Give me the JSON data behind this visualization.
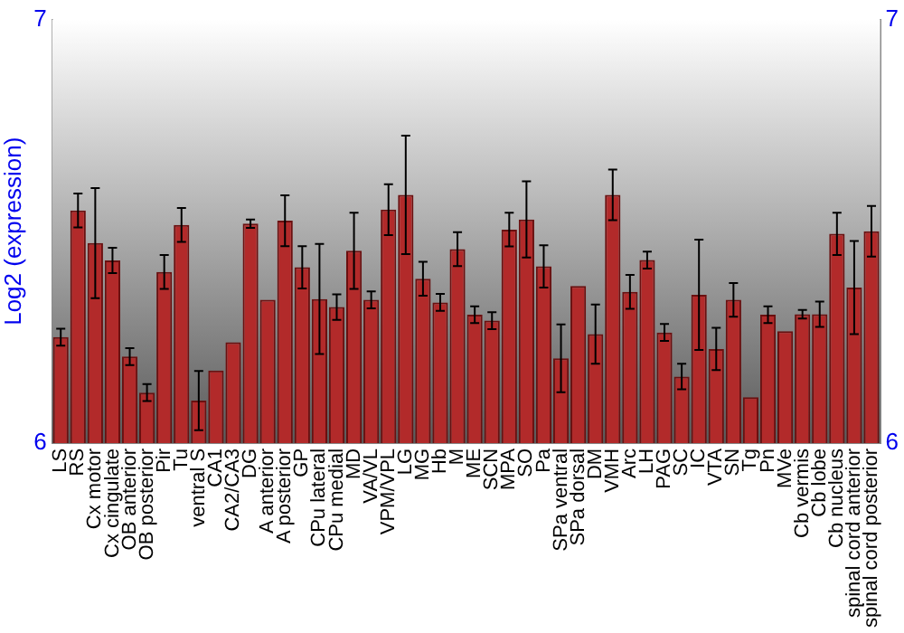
{
  "chart_data": {
    "type": "bar",
    "ylabel": "Log2 (expression)",
    "categories": [
      "LS",
      "RS",
      "Cx motor",
      "Cx cingulate",
      "OB anterior",
      "OB posterior",
      "Pir",
      "Tu",
      "ventral S",
      "CA1",
      "CA2/CA3",
      "DG",
      "A anterior",
      "A posterior",
      "GP",
      "CPu lateral",
      "CPu medial",
      "MD",
      "VA/VL",
      "VPM/VPL",
      "LG",
      "MG",
      "Hb",
      "M",
      "ME",
      "SCN",
      "MPA",
      "SO",
      "Pa",
      "SPa ventral",
      "SPa dorsal",
      "DM",
      "VMH",
      "Arc",
      "LH",
      "PAG",
      "SC",
      "IC",
      "VTA",
      "SN",
      "Tg",
      "Pn",
      "MVe",
      "Cb vermis",
      "Cb lobe",
      "Cb nucleus",
      "spinal cord anterior",
      "spinal cord posterior"
    ],
    "values": [
      6.25,
      6.549,
      6.472,
      6.431,
      6.204,
      6.119,
      6.404,
      6.515,
      6.1,
      6.171,
      6.238,
      6.518,
      6.338,
      6.525,
      6.415,
      6.34,
      6.321,
      6.454,
      6.338,
      6.551,
      6.586,
      6.388,
      6.332,
      6.458,
      6.303,
      6.289,
      6.504,
      6.528,
      6.417,
      6.2,
      6.371,
      6.257,
      6.586,
      6.357,
      6.432,
      6.261,
      6.157,
      6.35,
      6.222,
      6.338,
      6.108,
      6.303,
      6.264,
      6.304,
      6.304,
      6.494,
      6.367,
      6.5
    ],
    "errors": [
      0.02,
      0.04,
      0.13,
      0.03,
      0.02,
      0.02,
      0.04,
      0.04,
      0.07,
      null,
      null,
      0.01,
      null,
      0.06,
      0.05,
      0.13,
      0.03,
      0.09,
      0.02,
      0.06,
      0.14,
      0.04,
      0.02,
      0.04,
      0.02,
      0.02,
      0.04,
      0.09,
      0.05,
      0.08,
      null,
      0.07,
      0.06,
      0.04,
      0.02,
      0.02,
      0.03,
      0.13,
      0.05,
      0.04,
      null,
      0.02,
      null,
      0.01,
      0.03,
      0.05,
      0.11,
      0.06
    ],
    "color": "#b22a2a",
    "ylim": [
      6,
      7
    ],
    "yticks": [
      6,
      7
    ],
    "y2lim": [
      6,
      7
    ],
    "y2ticks": [
      6,
      7
    ],
    "grid": false,
    "legend": false
  }
}
